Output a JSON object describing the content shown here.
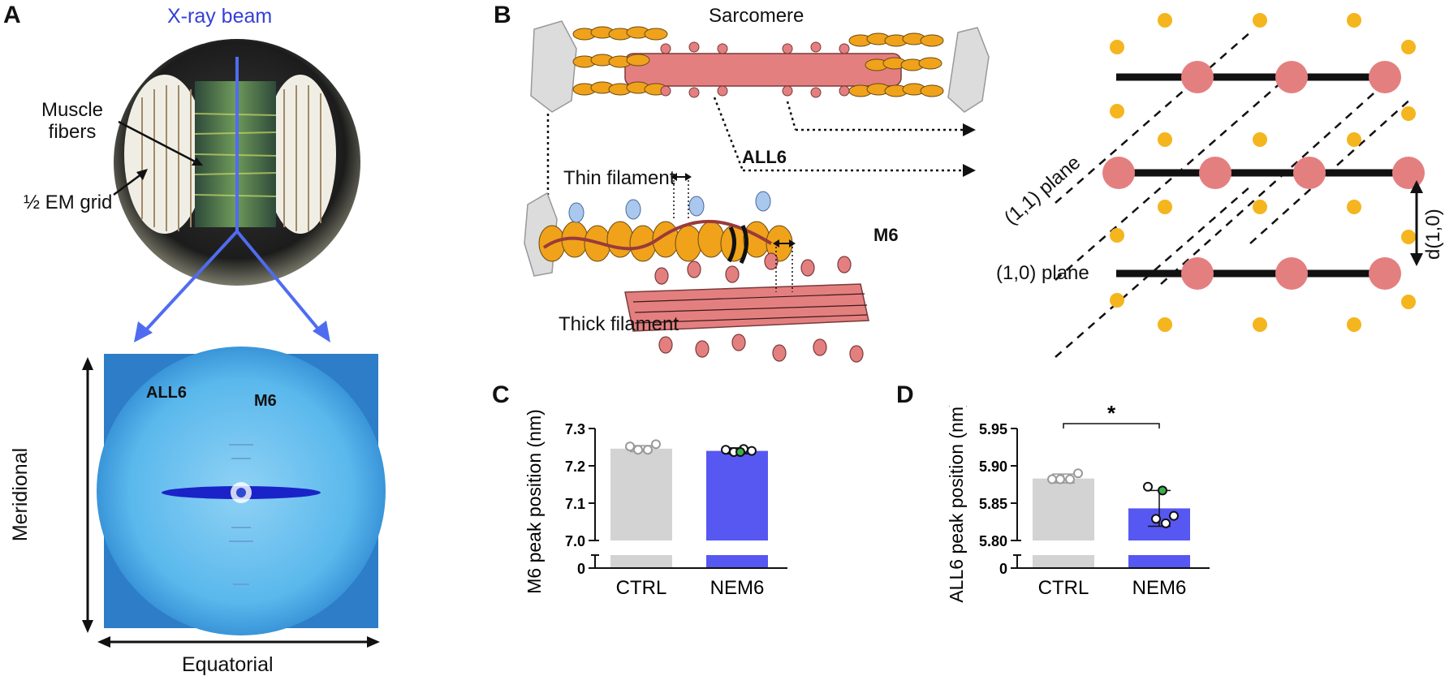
{
  "panelA": {
    "letter": "A",
    "beam_label": "X-ray beam",
    "muscle_fibers_line1": "Muscle",
    "muscle_fibers_line2": "fibers",
    "em_grid": "½ EM grid",
    "all6": "ALL6",
    "m6": "M6",
    "meridional": "Meridional",
    "equatorial": "Equatorial",
    "colors": {
      "beam": "#4f6cf0",
      "pattern_bg": "#55b8ee",
      "pattern_core": "#1a23c8"
    }
  },
  "panelB": {
    "letter": "B",
    "sarcomere": "Sarcomere",
    "thin_filament": "Thin filament",
    "thick_filament": "Thick filament",
    "all6": "ALL6",
    "m6": "M6",
    "plane_11": "(1,1) plane",
    "plane_10": "(1,0) plane",
    "d10": "d(1,0)",
    "colors": {
      "thin": "#f0a21b",
      "thick": "#e47f80",
      "tropomyosin": "#9a3a3a"
    }
  },
  "panelC": {
    "letter": "C"
  },
  "panelD": {
    "letter": "D",
    "significance": "*"
  },
  "chart_data": [
    {
      "type": "bar",
      "panel": "C",
      "ylabel": "M6 peak position (nm)",
      "categories": [
        "CTRL",
        "NEM6"
      ],
      "values": [
        7.246,
        7.24
      ],
      "error": [
        0.008,
        0.008
      ],
      "points": [
        [
          7.252,
          7.243,
          7.243,
          7.258
        ],
        [
          7.243,
          7.237,
          7.245,
          7.24
        ]
      ],
      "highlight_point": {
        "category": "NEM6",
        "value": 7.237
      },
      "ylim": [
        7.0,
        7.3
      ],
      "yticks": [
        "7.0",
        "7.1",
        "7.2",
        "7.3"
      ],
      "broken_axis_zero": "0",
      "colors": [
        "#d3d3d3",
        "#5757f2"
      ]
    },
    {
      "type": "bar",
      "panel": "D",
      "ylabel": "ALL6 peak position (nm)",
      "categories": [
        "CTRL",
        "NEM6"
      ],
      "values": [
        5.883,
        5.843
      ],
      "error": [
        0.006,
        0.024
      ],
      "points": [
        [
          5.882,
          5.882,
          5.882,
          5.89
        ],
        [
          5.872,
          5.829,
          5.823,
          5.833
        ]
      ],
      "highlight_point": {
        "category": "NEM6",
        "value": 5.867
      },
      "ylim": [
        5.8,
        5.95
      ],
      "yticks": [
        "5.80",
        "5.85",
        "5.90",
        "5.95"
      ],
      "broken_axis_zero": "0",
      "significance": "*",
      "colors": [
        "#d3d3d3",
        "#5757f2"
      ]
    }
  ]
}
